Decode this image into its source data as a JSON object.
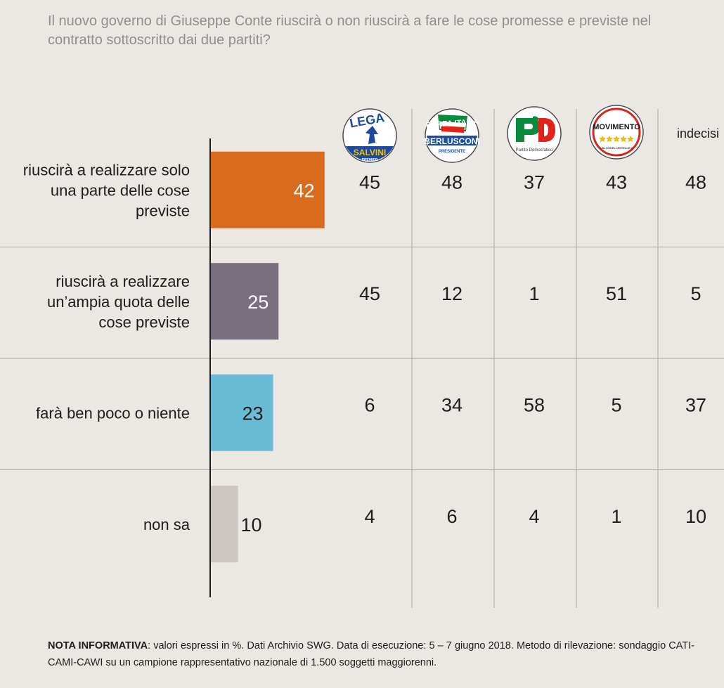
{
  "question": "Il nuovo governo di Giuseppe Conte riuscirà o non riuscirà a fare le cose promesse e previste nel contratto sottoscritto dai due partiti?",
  "columns": [
    {
      "name": "Lega Salvini Premier",
      "logo": "lega-logo-icon",
      "logo_text": [
        "LEGA",
        "SALVINI",
        "PREMIER"
      ],
      "color": "#1d4a9e"
    },
    {
      "name": "Forza Italia Berlusconi Presidente",
      "logo": "forza-italia-logo-icon",
      "logo_text": [
        "FORZA",
        "ITALIA",
        "BERLUSCONI",
        "PRESIDENTE"
      ],
      "color": "#1a4ea2"
    },
    {
      "name": "Partito Democratico",
      "logo": "pd-logo-icon",
      "logo_text": [
        "PD",
        "Partito Democratico"
      ],
      "color": "#e2231a"
    },
    {
      "name": "MoVimento 5 Stelle",
      "logo": "m5s-logo-icon",
      "logo_text": [
        "MOVIMENTO",
        "ILBLOGDELLESTELLE.IT"
      ],
      "color": "#d7261e"
    },
    {
      "name": "indecisi",
      "label": "indecisi"
    }
  ],
  "chart_data": {
    "type": "bar",
    "categories": [
      "riuscirà a realizzare solo una parte delle cose previste",
      "riuscirà a realizzare un’ampia quota delle cose previste",
      "farà ben poco o niente",
      "non sa"
    ],
    "label_lines": [
      [
        "riuscirà a realizzare solo",
        "una parte delle cose",
        "previste"
      ],
      [
        "riuscirà a realizzare",
        "un’ampia quota delle",
        "cose previste"
      ],
      [
        "farà ben poco o niente"
      ],
      [
        "non sa"
      ]
    ],
    "values": [
      42,
      25,
      23,
      10
    ],
    "colors": [
      "#d86b1e",
      "#786e7e",
      "#68bcd5",
      "#cec6c2"
    ],
    "value_label_colors": [
      "#ffffff",
      "#ffffff",
      "#1d1d1d",
      "#1d1d1d"
    ],
    "table": [
      [
        45,
        48,
        37,
        43,
        48
      ],
      [
        45,
        12,
        1,
        51,
        5
      ],
      [
        6,
        34,
        58,
        5,
        37
      ],
      [
        4,
        6,
        4,
        1,
        10
      ]
    ],
    "unit": "%"
  },
  "note": {
    "bold": "NOTA INFORMATIVA",
    "text": ": valori espressi in %. Dati Archivio SWG. Data di esecuzione: 5 – 7 giugno 2018. Metodo di rilevazione: sondaggio CATI-CAMI-CAWI su un campione rappresentativo nazionale di 1.500 soggetti maggiorenni."
  }
}
